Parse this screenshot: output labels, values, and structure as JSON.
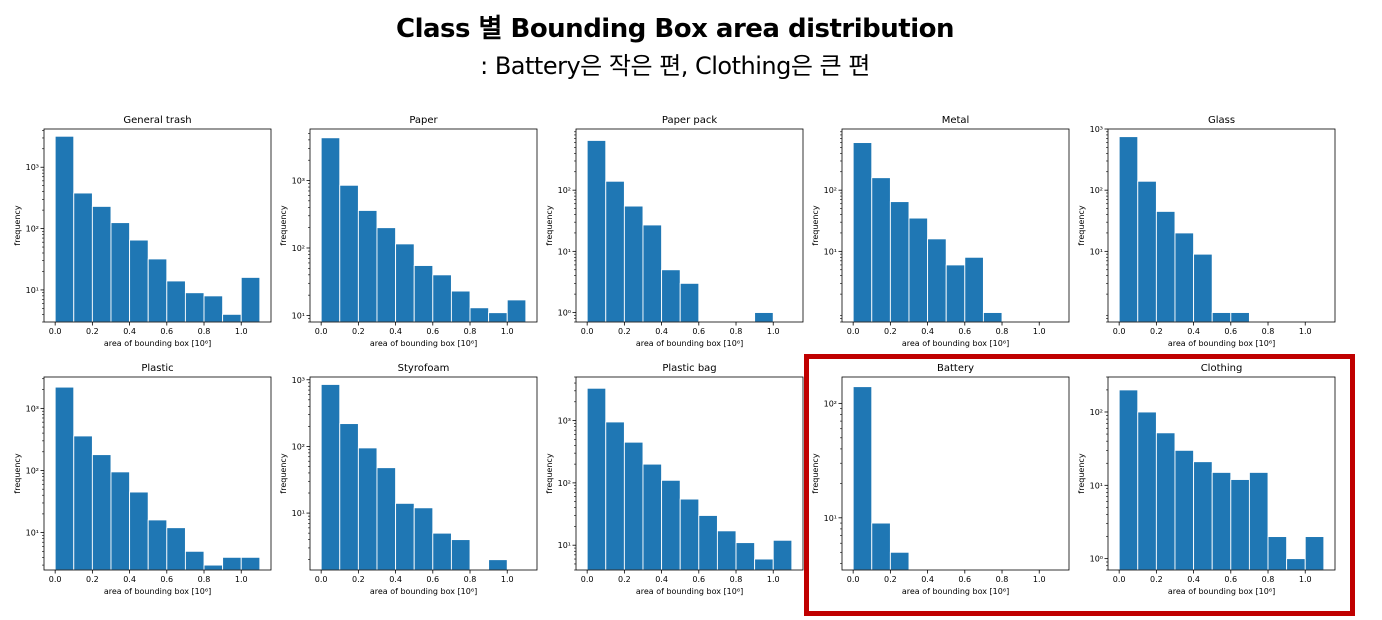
{
  "header": {
    "title": "Class 별 Bounding Box area distribution",
    "subtitle": ": Battery은 작은 편, Clothing은 큰 편"
  },
  "highlight": {
    "color": "#c00000",
    "classes": [
      "Battery",
      "Clothing"
    ]
  },
  "chart_data": [
    {
      "type": "bar",
      "title": "General trash",
      "xlabel": "area of bounding box [10⁶]",
      "ylabel": "frequency",
      "yscale": "log",
      "ylim": [
        3,
        4200
      ],
      "yticks": [
        10,
        100,
        1000
      ],
      "ytick_labels": [
        "10¹",
        "10²",
        "10³"
      ],
      "xlim": [
        -0.06,
        1.16
      ],
      "xticks": [
        0,
        0.2,
        0.4,
        0.6,
        0.8,
        1.0
      ],
      "xtick_labels": [
        "0.0",
        "0.2",
        "0.4",
        "0.6",
        "0.8",
        "1.0"
      ],
      "bin_edges": [
        0,
        0.1,
        0.2,
        0.3,
        0.4,
        0.5,
        0.6,
        0.7,
        0.8,
        0.9,
        1.0,
        1.1
      ],
      "values": [
        3200,
        380,
        230,
        125,
        65,
        32,
        14,
        9,
        8,
        4,
        16
      ],
      "color": "#1f77b4"
    },
    {
      "type": "bar",
      "title": "Paper",
      "xlabel": "area of bounding box [10⁶]",
      "ylabel": "frequency",
      "yscale": "log",
      "ylim": [
        8,
        5800
      ],
      "yticks": [
        10,
        100,
        1000
      ],
      "ytick_labels": [
        "10¹",
        "10²",
        "10³"
      ],
      "xlim": [
        -0.06,
        1.16
      ],
      "xticks": [
        0,
        0.2,
        0.4,
        0.6,
        0.8,
        1.0
      ],
      "xtick_labels": [
        "0.0",
        "0.2",
        "0.4",
        "0.6",
        "0.8",
        "1.0"
      ],
      "bin_edges": [
        0,
        0.1,
        0.2,
        0.3,
        0.4,
        0.5,
        0.6,
        0.7,
        0.8,
        0.9,
        1.0,
        1.1
      ],
      "values": [
        4300,
        850,
        360,
        200,
        115,
        55,
        40,
        23,
        13,
        11,
        17
      ],
      "color": "#1f77b4"
    },
    {
      "type": "bar",
      "title": "Paper pack",
      "xlabel": "area of bounding box [10⁶]",
      "ylabel": "frequency",
      "yscale": "log",
      "ylim": [
        0.7,
        1000
      ],
      "yticks": [
        1,
        10,
        100
      ],
      "ytick_labels": [
        "10⁰",
        "10¹",
        "10²"
      ],
      "xlim": [
        -0.06,
        1.16
      ],
      "xticks": [
        0,
        0.2,
        0.4,
        0.6,
        0.8,
        1.0
      ],
      "xtick_labels": [
        "0.0",
        "0.2",
        "0.4",
        "0.6",
        "0.8",
        "1.0"
      ],
      "bin_edges": [
        0,
        0.1,
        0.2,
        0.3,
        0.4,
        0.5,
        0.6,
        0.7,
        0.8,
        0.9,
        1.0,
        1.1
      ],
      "values": [
        650,
        140,
        55,
        27,
        5,
        3,
        0,
        0,
        0,
        1,
        0
      ],
      "color": "#1f77b4"
    },
    {
      "type": "bar",
      "title": "Metal",
      "xlabel": "area of bounding box [10⁶]",
      "ylabel": "frequency",
      "yscale": "log",
      "ylim": [
        0.7,
        1000
      ],
      "yticks": [
        10,
        100
      ],
      "ytick_labels": [
        "10¹",
        "10²"
      ],
      "xlim": [
        -0.06,
        1.16
      ],
      "xticks": [
        0,
        0.2,
        0.4,
        0.6,
        0.8,
        1.0
      ],
      "xtick_labels": [
        "0.0",
        "0.2",
        "0.4",
        "0.6",
        "0.8",
        "1.0"
      ],
      "bin_edges": [
        0,
        0.1,
        0.2,
        0.3,
        0.4,
        0.5,
        0.6,
        0.7,
        0.8,
        0.9,
        1.0,
        1.1
      ],
      "values": [
        600,
        160,
        65,
        35,
        16,
        6,
        8,
        1,
        0,
        0,
        0
      ],
      "color": "#1f77b4"
    },
    {
      "type": "bar",
      "title": "Glass",
      "xlabel": "area of bounding box [10⁶]",
      "ylabel": "frequency",
      "yscale": "log",
      "ylim": [
        0.7,
        1000
      ],
      "yticks": [
        10,
        100,
        1000
      ],
      "ytick_labels": [
        "10¹",
        "10²",
        "10³"
      ],
      "xlim": [
        -0.06,
        1.16
      ],
      "xticks": [
        0,
        0.2,
        0.4,
        0.6,
        0.8,
        1.0
      ],
      "xtick_labels": [
        "0.0",
        "0.2",
        "0.4",
        "0.6",
        "0.8",
        "1.0"
      ],
      "bin_edges": [
        0,
        0.1,
        0.2,
        0.3,
        0.4,
        0.5,
        0.6,
        0.7,
        0.8,
        0.9,
        1.0,
        1.1
      ],
      "values": [
        750,
        140,
        45,
        20,
        9,
        1,
        1,
        0,
        0,
        0,
        0
      ],
      "color": "#1f77b4"
    },
    {
      "type": "bar",
      "title": "Plastic",
      "xlabel": "area of bounding box [10⁶]",
      "ylabel": "frequency",
      "yscale": "log",
      "ylim": [
        2.5,
        3200
      ],
      "yticks": [
        10,
        100,
        1000
      ],
      "ytick_labels": [
        "10¹",
        "10²",
        "10³"
      ],
      "xlim": [
        -0.06,
        1.16
      ],
      "xticks": [
        0,
        0.2,
        0.4,
        0.6,
        0.8,
        1.0
      ],
      "xtick_labels": [
        "0.0",
        "0.2",
        "0.4",
        "0.6",
        "0.8",
        "1.0"
      ],
      "bin_edges": [
        0,
        0.1,
        0.2,
        0.3,
        0.4,
        0.5,
        0.6,
        0.7,
        0.8,
        0.9,
        1.0,
        1.1
      ],
      "values": [
        2200,
        360,
        180,
        95,
        45,
        16,
        12,
        5,
        3,
        4,
        4
      ],
      "color": "#1f77b4"
    },
    {
      "type": "bar",
      "title": "Styrofoam",
      "xlabel": "area of bounding box [10⁶]",
      "ylabel": "frequency",
      "yscale": "log",
      "ylim": [
        1.4,
        1100
      ],
      "yticks": [
        10,
        100,
        1000
      ],
      "ytick_labels": [
        "10¹",
        "10²",
        "10³"
      ],
      "xlim": [
        -0.06,
        1.16
      ],
      "xticks": [
        0,
        0.2,
        0.4,
        0.6,
        0.8,
        1.0
      ],
      "xtick_labels": [
        "0.0",
        "0.2",
        "0.4",
        "0.6",
        "0.8",
        "1.0"
      ],
      "bin_edges": [
        0,
        0.1,
        0.2,
        0.3,
        0.4,
        0.5,
        0.6,
        0.7,
        0.8,
        0.9,
        1.0,
        1.1
      ],
      "values": [
        850,
        220,
        95,
        48,
        14,
        12,
        5,
        4,
        0,
        2,
        0
      ],
      "color": "#1f77b4"
    },
    {
      "type": "bar",
      "title": "Plastic bag",
      "xlabel": "area of bounding box [10⁶]",
      "ylabel": "frequency",
      "yscale": "log",
      "ylim": [
        4,
        5000
      ],
      "yticks": [
        10,
        100,
        1000
      ],
      "ytick_labels": [
        "10¹",
        "10²",
        "10³"
      ],
      "xlim": [
        -0.06,
        1.16
      ],
      "xticks": [
        0,
        0.2,
        0.4,
        0.6,
        0.8,
        1.0
      ],
      "xtick_labels": [
        "0.0",
        "0.2",
        "0.4",
        "0.6",
        "0.8",
        "1.0"
      ],
      "bin_edges": [
        0,
        0.1,
        0.2,
        0.3,
        0.4,
        0.5,
        0.6,
        0.7,
        0.8,
        0.9,
        1.0,
        1.1
      ],
      "values": [
        3300,
        950,
        450,
        200,
        110,
        55,
        30,
        17,
        11,
        6,
        12
      ],
      "color": "#1f77b4"
    },
    {
      "type": "bar",
      "title": "Battery",
      "xlabel": "area of bounding box [10⁶]",
      "ylabel": "frequency",
      "yscale": "log",
      "ylim": [
        3.5,
        170
      ],
      "yticks": [
        10,
        100
      ],
      "ytick_labels": [
        "10¹",
        "10²"
      ],
      "xlim": [
        -0.06,
        1.16
      ],
      "xticks": [
        0,
        0.2,
        0.4,
        0.6,
        0.8,
        1.0
      ],
      "xtick_labels": [
        "0.0",
        "0.2",
        "0.4",
        "0.6",
        "0.8",
        "1.0"
      ],
      "bin_edges": [
        0,
        0.1,
        0.2,
        0.3,
        0.4,
        0.5,
        0.6,
        0.7,
        0.8,
        0.9,
        1.0,
        1.1
      ],
      "values": [
        140,
        9,
        5,
        0,
        0,
        0,
        0,
        0,
        0,
        0,
        0
      ],
      "color": "#1f77b4"
    },
    {
      "type": "bar",
      "title": "Clothing",
      "xlabel": "area of bounding box [10⁶]",
      "ylabel": "frequency",
      "yscale": "log",
      "ylim": [
        0.7,
        300
      ],
      "yticks": [
        1,
        10,
        100
      ],
      "ytick_labels": [
        "10⁰",
        "10¹",
        "10²"
      ],
      "xlim": [
        -0.06,
        1.16
      ],
      "xticks": [
        0,
        0.2,
        0.4,
        0.6,
        0.8,
        1.0
      ],
      "xtick_labels": [
        "0.0",
        "0.2",
        "0.4",
        "0.6",
        "0.8",
        "1.0"
      ],
      "bin_edges": [
        0,
        0.1,
        0.2,
        0.3,
        0.4,
        0.5,
        0.6,
        0.7,
        0.8,
        0.9,
        1.0,
        1.1
      ],
      "values": [
        200,
        100,
        52,
        30,
        21,
        15,
        12,
        15,
        2,
        1,
        2
      ],
      "color": "#1f77b4"
    }
  ]
}
